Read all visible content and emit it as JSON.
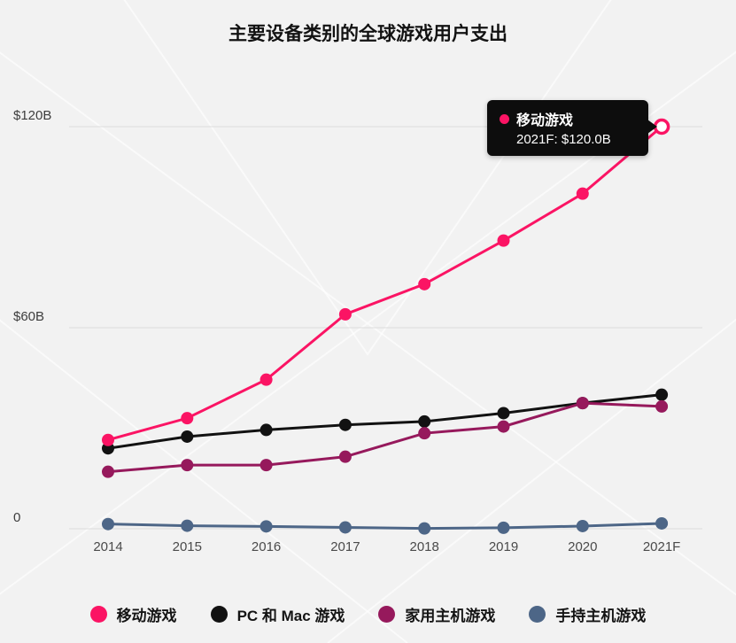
{
  "chart": {
    "title": "主要设备类别的全球游戏用户支出"
  },
  "tooltip": {
    "series": "移动游戏",
    "value_text": "2021F: $120.0B",
    "dot_color": "#fb1464"
  },
  "chart_data": {
    "type": "line",
    "title": "主要设备类别的全球游戏用户支出",
    "xlabel": "",
    "ylabel": "",
    "categories": [
      "2014",
      "2015",
      "2016",
      "2017",
      "2018",
      "2019",
      "2020",
      "2021F"
    ],
    "series": [
      {
        "name": "移动游戏",
        "color": "#fb1464",
        "values": [
          26.5,
          33.0,
          44.5,
          64.0,
          73.0,
          86.0,
          100.0,
          120.0
        ],
        "open_last_point": true
      },
      {
        "name": "PC 和 Mac 游戏",
        "color": "#121212",
        "values": [
          24.0,
          27.5,
          29.5,
          31.0,
          32.0,
          34.5,
          37.5,
          40.0
        ]
      },
      {
        "name": "家用主机游戏",
        "color": "#96195c",
        "values": [
          17.0,
          19.0,
          19.0,
          21.5,
          28.5,
          30.5,
          37.5,
          36.5
        ]
      },
      {
        "name": "手持主机游戏",
        "color": "#4d6687",
        "values": [
          1.4,
          0.9,
          0.7,
          0.4,
          0.1,
          0.3,
          0.8,
          1.6
        ]
      }
    ],
    "y_ticks": [
      {
        "value": 0,
        "label": "0"
      },
      {
        "value": 60,
        "label": "$60B"
      },
      {
        "value": 120,
        "label": "$120B"
      }
    ],
    "ylim": [
      0,
      130
    ],
    "grid": "horizontal",
    "legend_position": "bottom",
    "annotation": {
      "series": "移动游戏",
      "category": "2021F",
      "value": 120.0,
      "text": "2021F: $120.0B"
    }
  }
}
